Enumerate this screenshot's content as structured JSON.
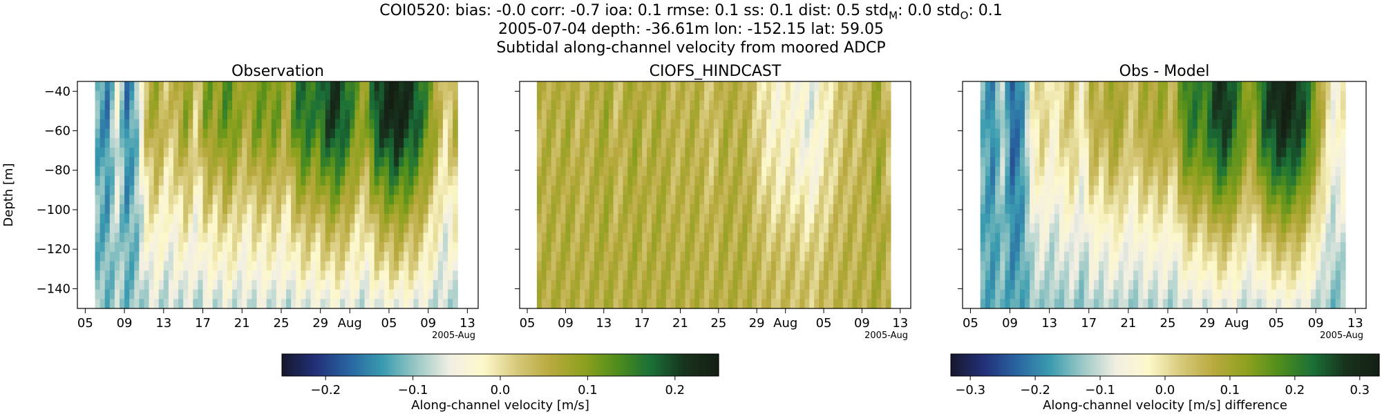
{
  "title": {
    "line1_prefix": "COI0520: bias: -0.0  corr: -0.7  ioa: 0.1  rmse: 0.1  ss: 0.1  dist: 0.5  std",
    "std_m_sub": "M",
    "line1_mid": ": 0.0  std",
    "std_o_sub": "O",
    "line1_suffix": ": 0.1",
    "line2": "2005-07-04 depth: -36.61m lon: -152.15 lat: 59.05",
    "line3": "Subtidal along-channel velocity from moored ADCP"
  },
  "colors": {
    "cmap": [
      "#16182f",
      "#23317a",
      "#2966a2",
      "#3b9cb0",
      "#9cc9c6",
      "#f2efe4",
      "#fdf8cb",
      "#d6c97a",
      "#b8a93e",
      "#8ea11e",
      "#4f8d1c",
      "#1a7038",
      "#18331d",
      "#141f14"
    ]
  },
  "chart_data": [
    {
      "type": "heatmap",
      "title": "Observation",
      "ylabel": "Depth [m]",
      "xlabel": "",
      "x_range": [
        "2005-07-06",
        "2005-08-12"
      ],
      "xticks": [
        "05",
        "09",
        "13",
        "17",
        "21",
        "25",
        "29",
        "Aug",
        "05",
        "09",
        "13"
      ],
      "x_offset_label": "2005-Aug",
      "ylim": [
        -150,
        -35
      ],
      "yticks": [
        "-40",
        "-60",
        "-80",
        "-100",
        "-120",
        "-140"
      ],
      "vlim": [
        -0.25,
        0.25
      ],
      "time_profile": [
        -0.12,
        -0.15,
        -0.05,
        -0.16,
        -0.1,
        0.05,
        0.08,
        0.02,
        0.05,
        0.1,
        0.0,
        0.12,
        0.08,
        0.14,
        0.1,
        0.06,
        0.12,
        0.1,
        0.12,
        0.05,
        0.15,
        0.18,
        0.14,
        0.2,
        0.22,
        0.18,
        0.12,
        0.08,
        0.2,
        0.22,
        0.25,
        0.22,
        0.2,
        0.14,
        0.08,
        0.0,
        0.06
      ],
      "depth_profile": [
        1.0,
        1.0,
        0.98,
        0.9,
        0.8,
        0.7,
        0.6,
        0.5,
        0.42,
        0.35,
        0.25,
        0.15
      ],
      "deep_offset": -0.1
    },
    {
      "type": "heatmap",
      "title": "CIOFS_HINDCAST",
      "ylabel": "",
      "xlabel": "",
      "x_range": [
        "2005-07-06",
        "2005-08-12"
      ],
      "xticks": [
        "05",
        "09",
        "13",
        "17",
        "21",
        "25",
        "29",
        "Aug",
        "05",
        "09",
        "13"
      ],
      "x_offset_label": "2005-Aug",
      "ylim": [
        -150,
        -35
      ],
      "vlim": [
        -0.25,
        0.25
      ],
      "time_profile": [
        0.05,
        0.06,
        0.05,
        0.07,
        0.04,
        0.05,
        0.06,
        0.08,
        0.03,
        0.06,
        0.08,
        0.04,
        0.07,
        0.06,
        0.04,
        0.05,
        0.06,
        0.04,
        0.02,
        0.07,
        0.05,
        0.06,
        0.03,
        0.0,
        -0.02,
        -0.03,
        -0.02,
        -0.04,
        -0.06,
        -0.03,
        0.0,
        0.02,
        0.04,
        0.03,
        0.05,
        0.08,
        0.03
      ],
      "depth_profile": [
        1.0,
        1.0,
        1.0,
        0.95,
        0.9,
        0.8,
        0.7,
        0.55,
        0.45,
        0.35,
        0.3,
        0.3
      ],
      "deep_offset": 0.06
    },
    {
      "type": "heatmap",
      "title": "Obs - Model",
      "ylabel": "",
      "xlabel": "",
      "x_range": [
        "2005-07-06",
        "2005-08-12"
      ],
      "xticks": [
        "05",
        "09",
        "13",
        "17",
        "21",
        "25",
        "29",
        "Aug",
        "05",
        "09",
        "13"
      ],
      "x_offset_label": "2005-Aug",
      "ylim": [
        -150,
        -35
      ],
      "vlim": [
        -0.33,
        0.33
      ],
      "time_profile": [
        -0.15,
        -0.2,
        -0.1,
        -0.24,
        -0.18,
        -0.02,
        0.03,
        -0.04,
        0.02,
        0.05,
        -0.05,
        0.1,
        0.04,
        0.12,
        0.08,
        0.02,
        0.1,
        0.08,
        0.12,
        0.04,
        0.18,
        0.22,
        0.18,
        0.25,
        0.3,
        0.24,
        0.16,
        0.1,
        0.24,
        0.28,
        0.32,
        0.3,
        0.26,
        0.16,
        0.06,
        -0.06,
        -0.02
      ],
      "depth_profile": [
        1.0,
        1.0,
        0.98,
        0.92,
        0.85,
        0.75,
        0.65,
        0.55,
        0.45,
        0.38,
        0.3,
        0.2
      ],
      "deep_offset": -0.16
    }
  ],
  "colorbars": [
    {
      "label": "Along-channel velocity [m/s]",
      "vlim": [
        -0.25,
        0.25
      ],
      "ticks": [
        -0.2,
        -0.1,
        0.0,
        0.1,
        0.2
      ],
      "tick_labels": [
        "−0.2",
        "−0.1",
        "0.0",
        "0.1",
        "0.2"
      ]
    },
    {
      "label": "Along-channel velocity [m/s] difference",
      "vlim": [
        -0.33,
        0.33
      ],
      "ticks": [
        -0.3,
        -0.2,
        -0.1,
        0.0,
        0.1,
        0.2,
        0.3
      ],
      "tick_labels": [
        "−0.3",
        "−0.2",
        "−0.1",
        "0.0",
        "0.1",
        "0.2",
        "0.3"
      ]
    }
  ]
}
